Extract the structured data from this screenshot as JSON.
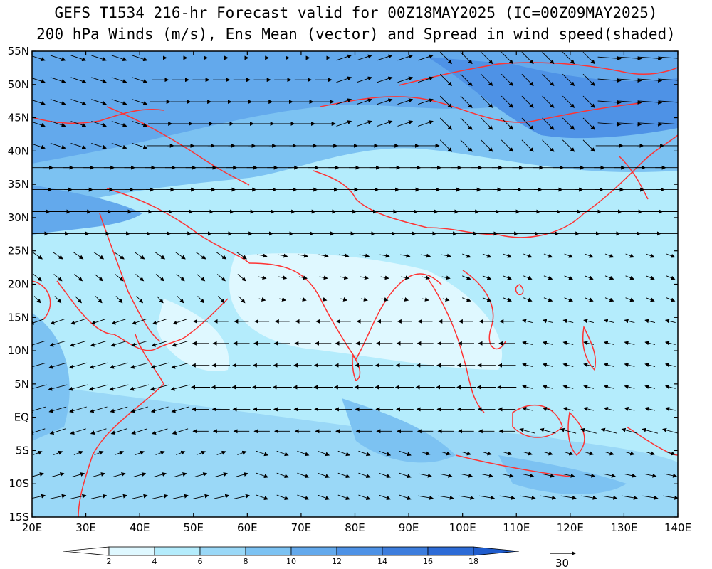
{
  "header": {
    "title_line1": "GEFS T1534 216-hr Forecast valid for 00Z18MAY2025 (IC=00Z09MAY2025)",
    "title_line2": "200 hPa Winds (m/s), Ens Mean (vector) and Spread in wind speed(shaded)"
  },
  "map": {
    "lon_range": [
      20,
      140
    ],
    "lat_range": [
      -15,
      55
    ],
    "lat_ticks": [
      "55N",
      "50N",
      "45N",
      "40N",
      "35N",
      "30N",
      "25N",
      "20N",
      "15N",
      "10N",
      "5N",
      "EQ",
      "5S",
      "10S",
      "15S"
    ],
    "lon_ticks": [
      "20E",
      "30E",
      "40E",
      "50E",
      "60E",
      "70E",
      "80E",
      "90E",
      "100E",
      "110E",
      "120E",
      "130E",
      "140E"
    ],
    "coastline_color": "#ff3333",
    "vector_color": "#000000"
  },
  "colorbar": {
    "levels": [
      "2",
      "4",
      "6",
      "8",
      "10",
      "12",
      "14",
      "16",
      "18"
    ],
    "colors": [
      "#ffffff",
      "#dff8ff",
      "#b4ecfc",
      "#9ad8f7",
      "#7cc2f2",
      "#63a9ec",
      "#4e92e6",
      "#3d7ddd",
      "#2d6bd6",
      "#1f5ccd"
    ]
  },
  "vector_reference": {
    "label": "30"
  }
}
